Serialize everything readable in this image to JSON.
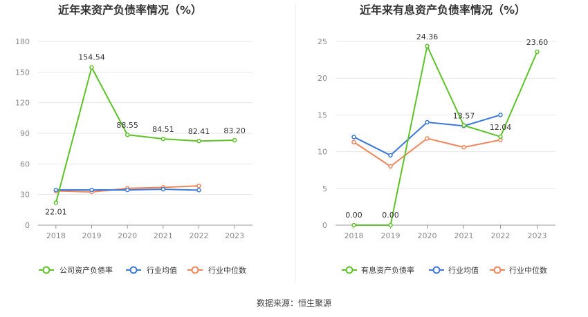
{
  "colors": {
    "company": "#5cc326",
    "industry_avg": "#3b78d8",
    "industry_median": "#f0845a"
  },
  "source_text": "数据来源：恒生聚源",
  "chart_data": [
    {
      "type": "line",
      "title": "近年来资产负债率情况（%）",
      "categories": [
        "2018",
        "2019",
        "2020",
        "2021",
        "2022",
        "2023"
      ],
      "ylim": [
        0,
        180
      ],
      "yticks": [
        0,
        30,
        60,
        90,
        120,
        150,
        180
      ],
      "grid": true,
      "legend_position": "bottom",
      "series": [
        {
          "name": "公司资产负债率",
          "color_key": "company",
          "values": [
            22.01,
            154.54,
            88.55,
            84.51,
            82.41,
            83.2
          ],
          "labels": [
            "22.01",
            "154.54",
            "88.55",
            "84.51",
            "82.41",
            "83.20"
          ]
        },
        {
          "name": "行业均值",
          "color_key": "industry_avg",
          "values": [
            34.5,
            34.5,
            34.5,
            35.2,
            34.3,
            null
          ]
        },
        {
          "name": "行业中位数",
          "color_key": "industry_median",
          "values": [
            33.5,
            32.5,
            36.0,
            37.0,
            38.5,
            null
          ]
        }
      ]
    },
    {
      "type": "line",
      "title": "近年来有息资产负债率情况（%）",
      "categories": [
        "2018",
        "2019",
        "2020",
        "2021",
        "2022",
        "2023"
      ],
      "ylim": [
        0,
        25
      ],
      "yticks": [
        0,
        5,
        10,
        15,
        20,
        25
      ],
      "grid": true,
      "legend_position": "bottom",
      "series": [
        {
          "name": "有息资产负债率",
          "color_key": "company",
          "values": [
            0.0,
            0.0,
            24.36,
            13.57,
            12.04,
            23.6
          ],
          "labels": [
            "0.00",
            "0.00",
            "24.36",
            "13.57",
            "12.04",
            "23.60"
          ]
        },
        {
          "name": "行业均值",
          "color_key": "industry_avg",
          "values": [
            12.0,
            9.5,
            14.0,
            13.5,
            15.0,
            null
          ]
        },
        {
          "name": "行业中位数",
          "color_key": "industry_median",
          "values": [
            11.3,
            8.0,
            11.8,
            10.6,
            11.6,
            null
          ]
        }
      ]
    }
  ]
}
